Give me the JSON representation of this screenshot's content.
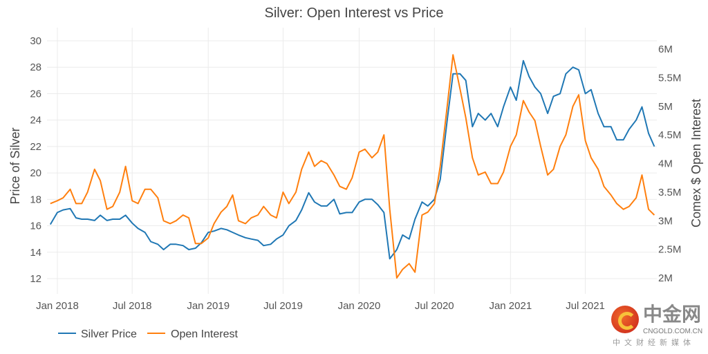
{
  "chart_data": {
    "type": "line",
    "title": "Silver: Open Interest vs Price",
    "ylabel": "Price of Silver",
    "y2label": "Comex $ Open Interest",
    "ylim": [
      11,
      30.3
    ],
    "y2lim": [
      1.85,
      6.15
    ],
    "yticks": [
      "12",
      "14",
      "16",
      "18",
      "20",
      "22",
      "24",
      "26",
      "28",
      "30"
    ],
    "y2ticks": [
      "2M",
      "2.5M",
      "3M",
      "3.5M",
      "4M",
      "4.5M",
      "5M",
      "5.5M",
      "6M"
    ],
    "xticks": [
      "Jan 2018",
      "Jul 2018",
      "Jan 2019",
      "Jul 2019",
      "Jan 2020",
      "Jul 2020",
      "Jan 2021",
      "Jul 2021"
    ],
    "grid": true,
    "legend_position": "bottom-left",
    "x": [
      "2017-12-15",
      "2018-01-01",
      "2018-01-15",
      "2018-02-01",
      "2018-02-15",
      "2018-03-01",
      "2018-03-15",
      "2018-04-01",
      "2018-04-15",
      "2018-05-01",
      "2018-05-15",
      "2018-06-01",
      "2018-06-15",
      "2018-07-01",
      "2018-07-15",
      "2018-08-01",
      "2018-08-15",
      "2018-09-01",
      "2018-09-15",
      "2018-10-01",
      "2018-10-15",
      "2018-11-01",
      "2018-11-15",
      "2018-12-01",
      "2018-12-15",
      "2019-01-01",
      "2019-01-15",
      "2019-02-01",
      "2019-02-15",
      "2019-03-01",
      "2019-03-15",
      "2019-04-01",
      "2019-04-15",
      "2019-05-01",
      "2019-05-15",
      "2019-06-01",
      "2019-06-15",
      "2019-07-01",
      "2019-07-15",
      "2019-08-01",
      "2019-08-15",
      "2019-09-01",
      "2019-09-15",
      "2019-10-01",
      "2019-10-15",
      "2019-11-01",
      "2019-11-15",
      "2019-12-01",
      "2019-12-15",
      "2020-01-01",
      "2020-01-15",
      "2020-02-01",
      "2020-02-15",
      "2020-03-01",
      "2020-03-15",
      "2020-04-01",
      "2020-04-15",
      "2020-05-01",
      "2020-05-15",
      "2020-06-01",
      "2020-06-15",
      "2020-07-01",
      "2020-07-15",
      "2020-08-01",
      "2020-08-15",
      "2020-09-01",
      "2020-09-15",
      "2020-10-01",
      "2020-10-15",
      "2020-11-01",
      "2020-11-15",
      "2020-12-01",
      "2020-12-15",
      "2021-01-01",
      "2021-01-15",
      "2021-02-01",
      "2021-02-15",
      "2021-03-01",
      "2021-03-15",
      "2021-04-01",
      "2021-04-15",
      "2021-05-01",
      "2021-05-15",
      "2021-06-01",
      "2021-06-15",
      "2021-07-01",
      "2021-07-15",
      "2021-08-01",
      "2021-08-15",
      "2021-09-01",
      "2021-09-15",
      "2021-10-01",
      "2021-10-15",
      "2021-11-01",
      "2021-11-15",
      "2021-12-01",
      "2021-12-15"
    ],
    "series": [
      {
        "name": "Silver Price",
        "axis": "left",
        "color": "#1f77b4",
        "values": [
          16.1,
          17.0,
          17.2,
          17.3,
          16.6,
          16.5,
          16.5,
          16.4,
          16.8,
          16.4,
          16.5,
          16.5,
          16.8,
          16.2,
          15.8,
          15.5,
          14.8,
          14.6,
          14.2,
          14.6,
          14.6,
          14.5,
          14.2,
          14.3,
          14.7,
          15.5,
          15.6,
          15.8,
          15.7,
          15.5,
          15.3,
          15.1,
          15.0,
          14.9,
          14.5,
          14.6,
          15.0,
          15.3,
          16.0,
          16.4,
          17.2,
          18.5,
          17.8,
          17.5,
          17.5,
          18.0,
          16.9,
          17.0,
          17.0,
          17.8,
          18.0,
          18.0,
          17.6,
          17.0,
          13.5,
          14.2,
          15.3,
          15.0,
          16.5,
          17.8,
          17.5,
          18.0,
          19.5,
          24.0,
          27.5,
          27.5,
          27.0,
          23.5,
          24.5,
          24.0,
          24.5,
          23.5,
          25.0,
          26.5,
          25.5,
          28.5,
          27.3,
          26.5,
          26.0,
          24.5,
          25.8,
          26.0,
          27.5,
          28.0,
          27.8,
          26.0,
          26.3,
          24.5,
          23.5,
          23.5,
          22.5,
          22.5,
          23.3,
          24.0,
          25.0,
          23.0,
          22.0
        ]
      },
      {
        "name": "Open Interest",
        "axis": "right",
        "color": "#ff7f0e",
        "values": [
          3.3,
          3.35,
          3.4,
          3.55,
          3.3,
          3.3,
          3.5,
          3.9,
          3.7,
          3.2,
          3.25,
          3.5,
          3.95,
          3.35,
          3.3,
          3.55,
          3.55,
          3.4,
          3.0,
          2.95,
          3.0,
          3.1,
          3.05,
          2.6,
          2.6,
          2.7,
          2.95,
          3.15,
          3.25,
          3.45,
          3.0,
          2.95,
          3.05,
          3.1,
          3.25,
          3.1,
          3.05,
          3.5,
          3.3,
          3.5,
          3.9,
          4.2,
          3.95,
          4.05,
          4.0,
          3.8,
          3.6,
          3.55,
          3.75,
          4.2,
          4.25,
          4.1,
          4.2,
          4.5,
          3.2,
          2.0,
          2.15,
          2.25,
          2.1,
          3.1,
          3.15,
          3.3,
          3.95,
          5.0,
          5.9,
          5.3,
          4.8,
          4.1,
          3.8,
          3.85,
          3.65,
          3.65,
          3.85,
          4.3,
          4.5,
          5.1,
          4.9,
          4.75,
          4.3,
          3.8,
          3.9,
          4.3,
          4.5,
          5.0,
          5.2,
          4.4,
          4.1,
          3.9,
          3.6,
          3.45,
          3.3,
          3.2,
          3.25,
          3.4,
          3.8,
          3.2,
          3.1
        ]
      }
    ]
  },
  "watermark": {
    "cn": "中金网",
    "en": "CNGOLD.COM.CN",
    "sub": "中文财经新媒体"
  }
}
